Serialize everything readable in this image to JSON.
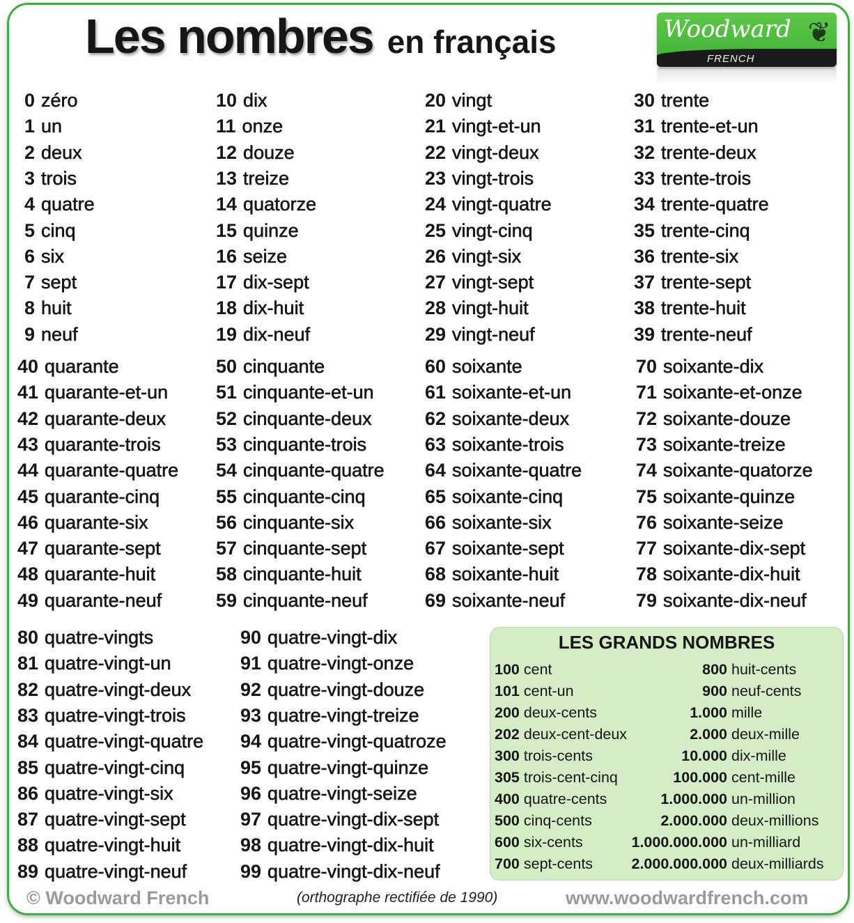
{
  "title": {
    "main": "Les nombres",
    "sub": "en français"
  },
  "logo": {
    "brand": "Woodward",
    "sub": "FRENCH",
    "icon": "fern-icon"
  },
  "colors": {
    "border": "#3cae3c",
    "box": "#d4edc6",
    "text": "#161616"
  },
  "section1": [
    [
      [
        "0",
        "zéro"
      ],
      [
        "1",
        "un"
      ],
      [
        "2",
        "deux"
      ],
      [
        "3",
        "trois"
      ],
      [
        "4",
        "quatre"
      ],
      [
        "5",
        "cinq"
      ],
      [
        "6",
        "six"
      ],
      [
        "7",
        "sept"
      ],
      [
        "8",
        "huit"
      ],
      [
        "9",
        "neuf"
      ]
    ],
    [
      [
        "10",
        "dix"
      ],
      [
        "11",
        "onze"
      ],
      [
        "12",
        "douze"
      ],
      [
        "13",
        "treize"
      ],
      [
        "14",
        "quatorze"
      ],
      [
        "15",
        "quinze"
      ],
      [
        "16",
        "seize"
      ],
      [
        "17",
        "dix-sept"
      ],
      [
        "18",
        "dix-huit"
      ],
      [
        "19",
        "dix-neuf"
      ]
    ],
    [
      [
        "20",
        "vingt"
      ],
      [
        "21",
        "vingt-et-un"
      ],
      [
        "22",
        "vingt-deux"
      ],
      [
        "23",
        "vingt-trois"
      ],
      [
        "24",
        "vingt-quatre"
      ],
      [
        "25",
        "vingt-cinq"
      ],
      [
        "26",
        "vingt-six"
      ],
      [
        "27",
        "vingt-sept"
      ],
      [
        "28",
        "vingt-huit"
      ],
      [
        "29",
        "vingt-neuf"
      ]
    ],
    [
      [
        "30",
        "trente"
      ],
      [
        "31",
        "trente-et-un"
      ],
      [
        "32",
        "trente-deux"
      ],
      [
        "33",
        "trente-trois"
      ],
      [
        "34",
        "trente-quatre"
      ],
      [
        "35",
        "trente-cinq"
      ],
      [
        "36",
        "trente-six"
      ],
      [
        "37",
        "trente-sept"
      ],
      [
        "38",
        "trente-huit"
      ],
      [
        "39",
        "trente-neuf"
      ]
    ]
  ],
  "section2": [
    [
      [
        "40",
        "quarante"
      ],
      [
        "41",
        "quarante-et-un"
      ],
      [
        "42",
        "quarante-deux"
      ],
      [
        "43",
        "quarante-trois"
      ],
      [
        "44",
        "quarante-quatre"
      ],
      [
        "45",
        "quarante-cinq"
      ],
      [
        "46",
        "quarante-six"
      ],
      [
        "47",
        "quarante-sept"
      ],
      [
        "48",
        "quarante-huit"
      ],
      [
        "49",
        "quarante-neuf"
      ]
    ],
    [
      [
        "50",
        "cinquante"
      ],
      [
        "51",
        "cinquante-et-un"
      ],
      [
        "52",
        "cinquante-deux"
      ],
      [
        "53",
        "cinquante-trois"
      ],
      [
        "54",
        "cinquante-quatre"
      ],
      [
        "55",
        "cinquante-cinq"
      ],
      [
        "56",
        "cinquante-six"
      ],
      [
        "57",
        "cinquante-sept"
      ],
      [
        "58",
        "cinquante-huit"
      ],
      [
        "59",
        "cinquante-neuf"
      ]
    ],
    [
      [
        "60",
        "soixante"
      ],
      [
        "61",
        "soixante-et-un"
      ],
      [
        "62",
        "soixante-deux"
      ],
      [
        "63",
        "soixante-trois"
      ],
      [
        "64",
        "soixante-quatre"
      ],
      [
        "65",
        "soixante-cinq"
      ],
      [
        "66",
        "soixante-six"
      ],
      [
        "67",
        "soixante-sept"
      ],
      [
        "68",
        "soixante-huit"
      ],
      [
        "69",
        "soixante-neuf"
      ]
    ],
    [
      [
        "70",
        "soixante-dix"
      ],
      [
        "71",
        "soixante-et-onze"
      ],
      [
        "72",
        "soixante-douze"
      ],
      [
        "73",
        "soixante-treize"
      ],
      [
        "74",
        "soixante-quatorze"
      ],
      [
        "75",
        "soixante-quinze"
      ],
      [
        "76",
        "soixante-seize"
      ],
      [
        "77",
        "soixante-dix-sept"
      ],
      [
        "78",
        "soixante-dix-huit"
      ],
      [
        "79",
        "soixante-dix-neuf"
      ]
    ]
  ],
  "section3": [
    [
      [
        "80",
        "quatre-vingts"
      ],
      [
        "81",
        "quatre-vingt-un"
      ],
      [
        "82",
        "quatre-vingt-deux"
      ],
      [
        "83",
        "quatre-vingt-trois"
      ],
      [
        "84",
        "quatre-vingt-quatre"
      ],
      [
        "85",
        "quatre-vingt-cinq"
      ],
      [
        "86",
        "quatre-vingt-six"
      ],
      [
        "87",
        "quatre-vingt-sept"
      ],
      [
        "88",
        "quatre-vingt-huit"
      ],
      [
        "89",
        "quatre-vingt-neuf"
      ]
    ],
    [
      [
        "90",
        "quatre-vingt-dix"
      ],
      [
        "91",
        "quatre-vingt-onze"
      ],
      [
        "92",
        "quatre-vingt-douze"
      ],
      [
        "93",
        "quatre-vingt-treize"
      ],
      [
        "94",
        "quatre-vingt-quatroze"
      ],
      [
        "95",
        "quatre-vingt-quinze"
      ],
      [
        "96",
        "quatre-vingt-seize"
      ],
      [
        "97",
        "quatre-vingt-dix-sept"
      ],
      [
        "98",
        "quatre-vingt-dix-huit"
      ],
      [
        "99",
        "quatre-vingt-dix-neuf"
      ]
    ]
  ],
  "grand": {
    "heading": "LES GRANDS NOMBRES",
    "left": [
      [
        "100",
        "cent"
      ],
      [
        "101",
        "cent-un"
      ],
      [
        "200",
        "deux-cents"
      ],
      [
        "202",
        "deux-cent-deux"
      ],
      [
        "300",
        "trois-cents"
      ],
      [
        "305",
        "trois-cent-cinq"
      ],
      [
        "400",
        "quatre-cents"
      ],
      [
        "500",
        "cinq-cents"
      ],
      [
        "600",
        "six-cents"
      ],
      [
        "700",
        "sept-cents"
      ]
    ],
    "right": [
      [
        "800",
        "huit-cents"
      ],
      [
        "900",
        "neuf-cents"
      ],
      [
        "1.000",
        "mille"
      ],
      [
        "2.000",
        "deux-mille"
      ],
      [
        "10.000",
        "dix-mille"
      ],
      [
        "100.000",
        "cent-mille"
      ],
      [
        "1.000.000",
        "un-million"
      ],
      [
        "2.000.000",
        "deux-millions"
      ],
      [
        "1.000.000.000",
        "un-milliard"
      ],
      [
        "2.000.000.000",
        "deux-milliards"
      ]
    ]
  },
  "footer": {
    "copyright": "© Woodward French",
    "note": "(orthographe rectifiée de 1990)",
    "url": "www.woodwardfrench.com"
  }
}
